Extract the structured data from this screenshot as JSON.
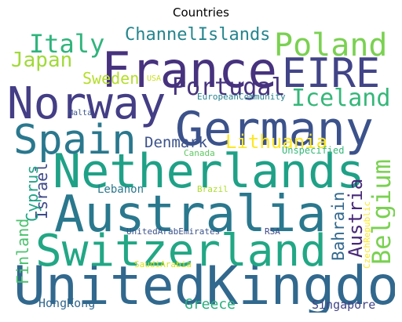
{
  "chart_data": {
    "type": "wordcloud",
    "title": "Countries",
    "colormap": "viridis",
    "background": "#ffffff",
    "words": [
      {
        "text": "UnitedKingdom",
        "color": "#31688e"
      },
      {
        "text": "Netherlands",
        "color": "#1fa187"
      },
      {
        "text": "Australia",
        "color": "#2a788e"
      },
      {
        "text": "Switzerland",
        "color": "#22a785"
      },
      {
        "text": "France",
        "color": "#46327e"
      },
      {
        "text": "Germany",
        "color": "#3b528b"
      },
      {
        "text": "Norway",
        "color": "#433e85"
      },
      {
        "text": "EIRE",
        "color": "#414487"
      },
      {
        "text": "Spain",
        "color": "#2a788e"
      },
      {
        "text": "Poland",
        "color": "#7ad151"
      },
      {
        "text": "Portugal",
        "color": "#46337e"
      },
      {
        "text": "Italy",
        "color": "#2fb47c"
      },
      {
        "text": "Iceland",
        "color": "#35b779"
      },
      {
        "text": "Belgium",
        "color": "#7ad151"
      },
      {
        "text": "Lithuania",
        "color": "#fde725"
      },
      {
        "text": "Japan",
        "color": "#a0da39"
      },
      {
        "text": "Sweden",
        "color": "#b5de2b"
      },
      {
        "text": "ChannelIslands",
        "color": "#25858e"
      },
      {
        "text": "Denmark",
        "color": "#3b528b"
      },
      {
        "text": "Israel",
        "color": "#3e4989"
      },
      {
        "text": "Austria",
        "color": "#482878"
      },
      {
        "text": "Bahrain",
        "color": "#31688e"
      },
      {
        "text": "Cyprus",
        "color": "#20a486"
      },
      {
        "text": "Finland",
        "color": "#4ac16d"
      },
      {
        "text": "Greece",
        "color": "#29af7f"
      },
      {
        "text": "HongKong",
        "color": "#31688e"
      },
      {
        "text": "Singapore",
        "color": "#414487"
      },
      {
        "text": "Lebanon",
        "color": "#2a788e"
      },
      {
        "text": "UnitedArabEmirates",
        "color": "#3b528b"
      },
      {
        "text": "RSA",
        "color": "#3e4989"
      },
      {
        "text": "SaudiArabia",
        "color": "#d8e219"
      },
      {
        "text": "Brazil",
        "color": "#addc30"
      },
      {
        "text": "Canada",
        "color": "#5ec962"
      },
      {
        "text": "Unspecified",
        "color": "#35b779"
      },
      {
        "text": "EuropeanCommunity",
        "color": "#26828e"
      },
      {
        "text": "Malta",
        "color": "#3b528b"
      },
      {
        "text": "USA",
        "color": "#c8e020"
      },
      {
        "text": "CzechRepublic",
        "color": "#fde725"
      }
    ]
  }
}
